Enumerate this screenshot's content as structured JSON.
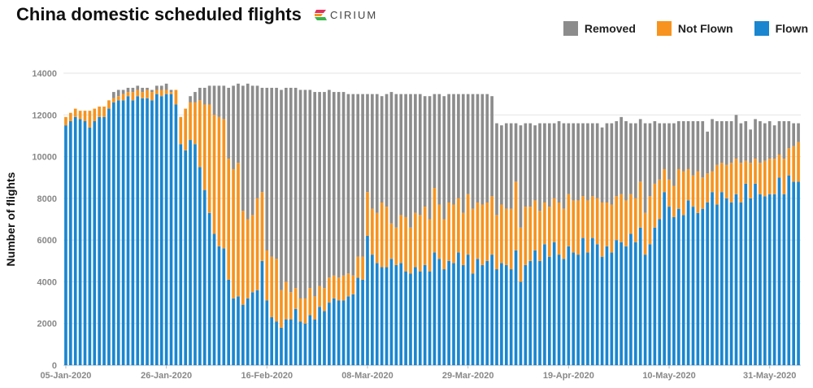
{
  "header": {
    "title": "China domestic scheduled flights",
    "logo_text": "CIRIUM"
  },
  "legend": [
    {
      "label": "Removed",
      "color": "#8c8c8c"
    },
    {
      "label": "Not Flown",
      "color": "#f7931e"
    },
    {
      "label": "Flown",
      "color": "#1a86d0"
    }
  ],
  "chart_data": {
    "type": "bar",
    "stacked": true,
    "title": "China domestic scheduled flights",
    "xlabel": "",
    "ylabel": "Number of flights",
    "ylim": [
      0,
      14000
    ],
    "yticks": [
      0,
      2000,
      4000,
      6000,
      8000,
      10000,
      12000,
      14000
    ],
    "start_date": "2020-01-05",
    "xtick_labels": [
      "05-Jan-2020",
      "26-Jan-2020",
      "16-Feb-2020",
      "08-Mar-2020",
      "29-Mar-2020",
      "19-Apr-2020",
      "10-May-2020",
      "31-May-2020"
    ],
    "xtick_index": [
      0,
      21,
      42,
      63,
      84,
      105,
      126,
      147
    ],
    "grid": true,
    "legend_position": "top-right",
    "colors": {
      "Removed": "#8c8c8c",
      "Not Flown": "#f7931e",
      "Flown": "#1a86d0"
    },
    "series": [
      {
        "name": "Flown",
        "values": [
          11500,
          11700,
          11900,
          11800,
          11700,
          11400,
          11700,
          11900,
          11900,
          12300,
          12600,
          12700,
          12700,
          12900,
          12700,
          12900,
          12800,
          12800,
          12700,
          13000,
          12900,
          13000,
          13000,
          12500,
          10600,
          10300,
          10800,
          10600,
          9500,
          8400,
          7300,
          6300,
          5700,
          5600,
          4100,
          3200,
          3300,
          2900,
          3200,
          3500,
          3600,
          5000,
          3100,
          2300,
          2100,
          1800,
          2200,
          2200,
          2700,
          2100,
          2000,
          2400,
          2200,
          2800,
          2600,
          3000,
          3200,
          3100,
          3100,
          3300,
          3400,
          4200,
          4100,
          6200,
          5300,
          4900,
          4700,
          4700,
          5100,
          4800,
          4900,
          4500,
          4400,
          4700,
          4500,
          4800,
          4500,
          5400,
          5100,
          4600,
          5000,
          4900,
          5400,
          4800,
          5300,
          4400,
          5100,
          4800,
          5000,
          5300,
          4600,
          4900,
          4800,
          4600,
          5500,
          4000,
          4800,
          5000,
          5500,
          5000,
          5800,
          5200,
          5900,
          5300,
          5100,
          5700,
          5400,
          5300,
          6100,
          5400,
          6100,
          5800,
          5200,
          5700,
          5400,
          6000,
          5900,
          5700,
          6300,
          5900,
          6600,
          5300,
          5800,
          6600,
          7000,
          8300,
          7600,
          7100,
          7500,
          7200,
          7900,
          7600,
          7300,
          7500,
          7800,
          8300,
          7700,
          8300,
          8000,
          7800,
          8200,
          7800,
          8700,
          8000,
          8700,
          8200,
          8100,
          8200,
          8200,
          9000,
          8200,
          9100,
          8800,
          8800
        ]
      },
      {
        "name": "Not Flown",
        "values": [
          400,
          400,
          400,
          400,
          500,
          800,
          600,
          500,
          500,
          400,
          200,
          200,
          300,
          200,
          400,
          300,
          300,
          400,
          400,
          200,
          300,
          200,
          100,
          700,
          1300,
          2000,
          1800,
          2000,
          3200,
          4100,
          5200,
          5700,
          6200,
          6200,
          5800,
          6200,
          6400,
          4500,
          3800,
          3700,
          4400,
          3300,
          2400,
          2900,
          3000,
          1800,
          1800,
          1300,
          1000,
          1100,
          1200,
          1300,
          1100,
          1000,
          1100,
          1200,
          1100,
          1100,
          1200,
          1100,
          900,
          1000,
          1100,
          2100,
          2200,
          2400,
          3100,
          2900,
          1700,
          1800,
          2300,
          2600,
          2200,
          2600,
          2700,
          2800,
          2500,
          3100,
          2600,
          2400,
          2800,
          2800,
          2600,
          2500,
          2900,
          3100,
          2700,
          2900,
          2800,
          2800,
          2600,
          2800,
          2700,
          2900,
          3300,
          2600,
          2800,
          2600,
          2400,
          2400,
          2000,
          2400,
          2100,
          2500,
          2400,
          2500,
          2500,
          2600,
          2000,
          2500,
          2000,
          2200,
          2600,
          2100,
          2300,
          2100,
          2300,
          2200,
          1900,
          2100,
          2200,
          2000,
          2300,
          2100,
          1900,
          1100,
          1300,
          1500,
          1900,
          2100,
          1500,
          1500,
          2000,
          1500,
          1400,
          1000,
          1900,
          1400,
          1600,
          1900,
          1700,
          1900,
          1100,
          1700,
          1200,
          1500,
          1700,
          1700,
          1700,
          1100,
          1700,
          1300,
          1700,
          1900
        ]
      },
      {
        "name": "Removed",
        "values": [
          0,
          0,
          0,
          0,
          0,
          0,
          0,
          0,
          0,
          0,
          300,
          300,
          200,
          200,
          200,
          200,
          200,
          100,
          100,
          200,
          200,
          300,
          100,
          0,
          0,
          0,
          300,
          500,
          600,
          800,
          900,
          1400,
          1500,
          1600,
          3400,
          4000,
          3800,
          6000,
          6500,
          6200,
          5400,
          5000,
          7800,
          8100,
          8200,
          9600,
          9300,
          9800,
          9600,
          10000,
          10000,
          9500,
          9800,
          9300,
          9400,
          9000,
          8800,
          8900,
          8800,
          8600,
          8700,
          7800,
          7800,
          4700,
          5500,
          5700,
          5100,
          5400,
          6300,
          6400,
          5800,
          5900,
          6400,
          5700,
          5800,
          5300,
          5900,
          4500,
          5300,
          5900,
          5200,
          5300,
          5000,
          5700,
          4800,
          5500,
          5200,
          5300,
          5200,
          4800,
          4400,
          3800,
          4100,
          4100,
          2800,
          4900,
          4000,
          4000,
          3600,
          4200,
          3800,
          4000,
          3600,
          3900,
          4100,
          3400,
          3700,
          3700,
          3500,
          3700,
          3500,
          3600,
          3600,
          3800,
          3900,
          3600,
          3700,
          3800,
          3400,
          3600,
          3000,
          4300,
          3500,
          3000,
          2700,
          2200,
          2700,
          3000,
          2300,
          2400,
          2300,
          2600,
          2400,
          2700,
          2000,
          2500,
          2100,
          2000,
          2100,
          2000,
          2100,
          1900,
          1900,
          1600,
          1900,
          2000,
          1800,
          1800,
          1600,
          1600,
          1800,
          1300,
          1100,
          900
        ]
      }
    ]
  }
}
